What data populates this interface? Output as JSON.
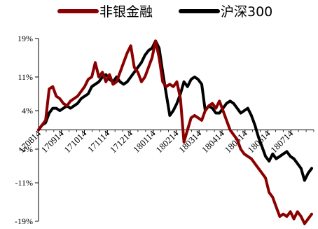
{
  "chart_data": {
    "type": "line",
    "title": "",
    "xlabel": "",
    "ylabel": "",
    "ylim": [
      -19,
      19
    ],
    "yticks": [
      19,
      11,
      4,
      -4,
      -11,
      -19
    ],
    "ytick_labels": [
      "19%",
      "11%",
      "4%",
      "-4%",
      "-11%",
      "-19%"
    ],
    "xtick_labels": [
      "170814",
      "170914",
      "171014",
      "171114",
      "171214",
      "180114",
      "180214",
      "180314",
      "180414",
      "180514",
      "180614",
      "180714"
    ],
    "x": [
      0,
      5,
      10,
      15,
      20,
      25,
      30,
      35,
      40,
      45,
      50,
      55,
      60,
      65,
      70,
      75,
      80,
      85,
      90,
      95,
      100,
      105,
      110,
      115,
      120,
      125,
      130,
      135,
      140,
      145,
      150,
      155,
      160,
      165,
      170,
      175,
      180,
      185,
      190,
      195,
      200,
      205,
      210,
      215,
      220,
      225,
      230,
      235,
      240,
      245,
      250,
      255,
      260,
      265,
      270,
      275,
      280,
      285,
      290,
      295,
      300,
      305,
      310,
      315,
      320,
      325,
      330,
      335,
      340,
      345,
      350,
      355,
      360,
      365,
      370,
      375,
      380,
      385
    ],
    "x_range": [
      0,
      388
    ],
    "legend_position": "top",
    "grid": false,
    "series": [
      {
        "name": "非银金融",
        "color": "#8b0000",
        "values": [
          0,
          1,
          2,
          8.5,
          9,
          7,
          6.5,
          5.5,
          5,
          6,
          6.5,
          7,
          8,
          9,
          10.5,
          11,
          14,
          11,
          12,
          10,
          11.5,
          9.5,
          10,
          12,
          14,
          16,
          17.5,
          13,
          12,
          10,
          11,
          13,
          15,
          18.5,
          15,
          10,
          9,
          9.5,
          9,
          10,
          6.5,
          -2.5,
          0,
          2.5,
          3,
          2.5,
          2,
          4,
          5,
          5.5,
          4.5,
          6,
          4,
          2,
          0,
          -1,
          -2,
          -4,
          -5,
          -5.5,
          -6,
          -7,
          -8,
          -9,
          -10,
          -13,
          -14,
          -16,
          -18,
          -17.5,
          -18,
          -17,
          -18.5,
          -17,
          -18,
          -19.5,
          -18.5,
          -17.5
        ]
      },
      {
        "name": "沪深300",
        "color": "#000000",
        "values": [
          0,
          1,
          1.5,
          3.5,
          4.5,
          4.5,
          4,
          4.5,
          5,
          4.5,
          5,
          5.5,
          6.5,
          7,
          7.5,
          9,
          9.5,
          10,
          11,
          11.5,
          10.5,
          10,
          11,
          10,
          9.5,
          10,
          11,
          12,
          13,
          14,
          15.5,
          16.5,
          17,
          18.5,
          17,
          12,
          7.5,
          3,
          4,
          5.5,
          7.5,
          10,
          9,
          10.5,
          11,
          10.5,
          9.5,
          4,
          5,
          4.5,
          3.5,
          3.5,
          4.5,
          5.5,
          6,
          5.5,
          4.5,
          3.5,
          4,
          4.5,
          3,
          1,
          -1.5,
          -3.5,
          -5.5,
          -6.5,
          -5,
          -6,
          -5.5,
          -5,
          -4.5,
          -5.5,
          -6,
          -7,
          -8,
          -10.5,
          -9,
          -8
        ]
      }
    ]
  }
}
